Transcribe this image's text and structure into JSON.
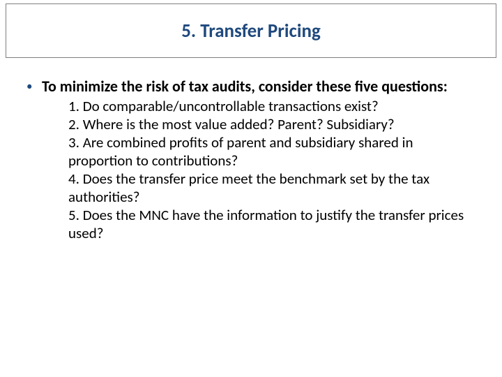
{
  "title": "5. Transfer Pricing",
  "colors": {
    "title_color": "#1f497d",
    "bullet_color": "#1f497d",
    "text_color": "#000000",
    "border_color": "#7f7f7f",
    "background": "#ffffff"
  },
  "typography": {
    "title_fontsize": 27,
    "title_weight": 700,
    "lead_fontsize": 22,
    "lead_weight": 700,
    "question_fontsize": 21,
    "question_weight": 400,
    "line_height": 26
  },
  "lead": "To minimize the risk of tax audits, consider these five questions:",
  "questions": [
    "1. Do comparable/uncontrollable transactions exist?",
    "2. Where is the most value added? Parent? Subsidiary?",
    "3. Are combined profits of parent and subsidiary shared in proportion to contributions?",
    "4. Does the transfer price meet the benchmark set by the tax authorities?",
    "5. Does the MNC have the information to justify the transfer prices used?"
  ]
}
